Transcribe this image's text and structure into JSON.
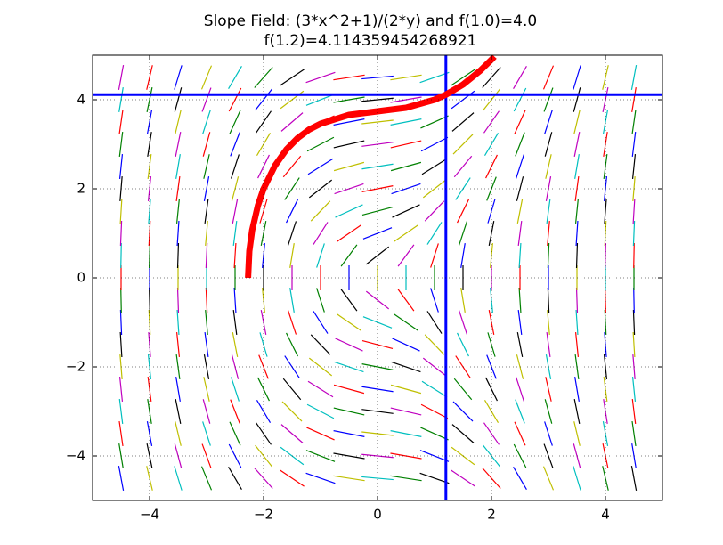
{
  "chart_data": {
    "type": "slope_field",
    "title": "Slope Field: (3*x^2+1)/(2*y) and f(1.0)=4.0",
    "subtitle": "f(1.2)=4.114359454268921",
    "xlim": [
      -5,
      5
    ],
    "ylim": [
      -5,
      5
    ],
    "xticks": [
      {
        "value": -4,
        "label": "−4"
      },
      {
        "value": -2,
        "label": "−2"
      },
      0,
      2,
      4
    ],
    "yticks": [
      {
        "value": -4,
        "label": "−4"
      },
      {
        "value": -2,
        "label": "−2"
      },
      0,
      2,
      4
    ],
    "grid": true,
    "field": {
      "x": [
        -4.5,
        -4,
        -3.5,
        -3,
        -2.5,
        -2,
        -1.5,
        -1,
        -0.5,
        0,
        0.5,
        1,
        1.5,
        2,
        2.5,
        3,
        3.5,
        4,
        4.5
      ],
      "y": [
        -4.5,
        -4,
        -3.5,
        -3,
        -2.5,
        -2,
        -1.5,
        -1,
        -0.5,
        0,
        0.5,
        1,
        1.5,
        2,
        2.5,
        3,
        3.5,
        4,
        4.5
      ],
      "colors": [
        "#0000ff",
        "#008000",
        "#ff0000",
        "#00bfbf",
        "#bf00bf",
        "#bfbf00",
        "#000000"
      ]
    },
    "series": [
      {
        "color": "#ff0000",
        "x": [
          -2.272,
          -2.25,
          -2.2,
          -2.1,
          -2.0,
          -1.8,
          -1.6,
          -1.4,
          -1.2,
          -1.0,
          -0.5,
          0,
          0.5,
          1.0,
          1.2,
          1.5,
          1.8,
          2.0,
          2.05
        ],
        "values": [
          0,
          0.6,
          1.07,
          1.62,
          2,
          2.52,
          2.88,
          3.14,
          3.33,
          3.46,
          3.66,
          3.74,
          3.82,
          4.0,
          4.114,
          4.34,
          4.65,
          4.9,
          4.97
        ]
      }
    ],
    "vline": 1.2,
    "hline": 4.114359454268921,
    "line_color": "#0000ff"
  }
}
